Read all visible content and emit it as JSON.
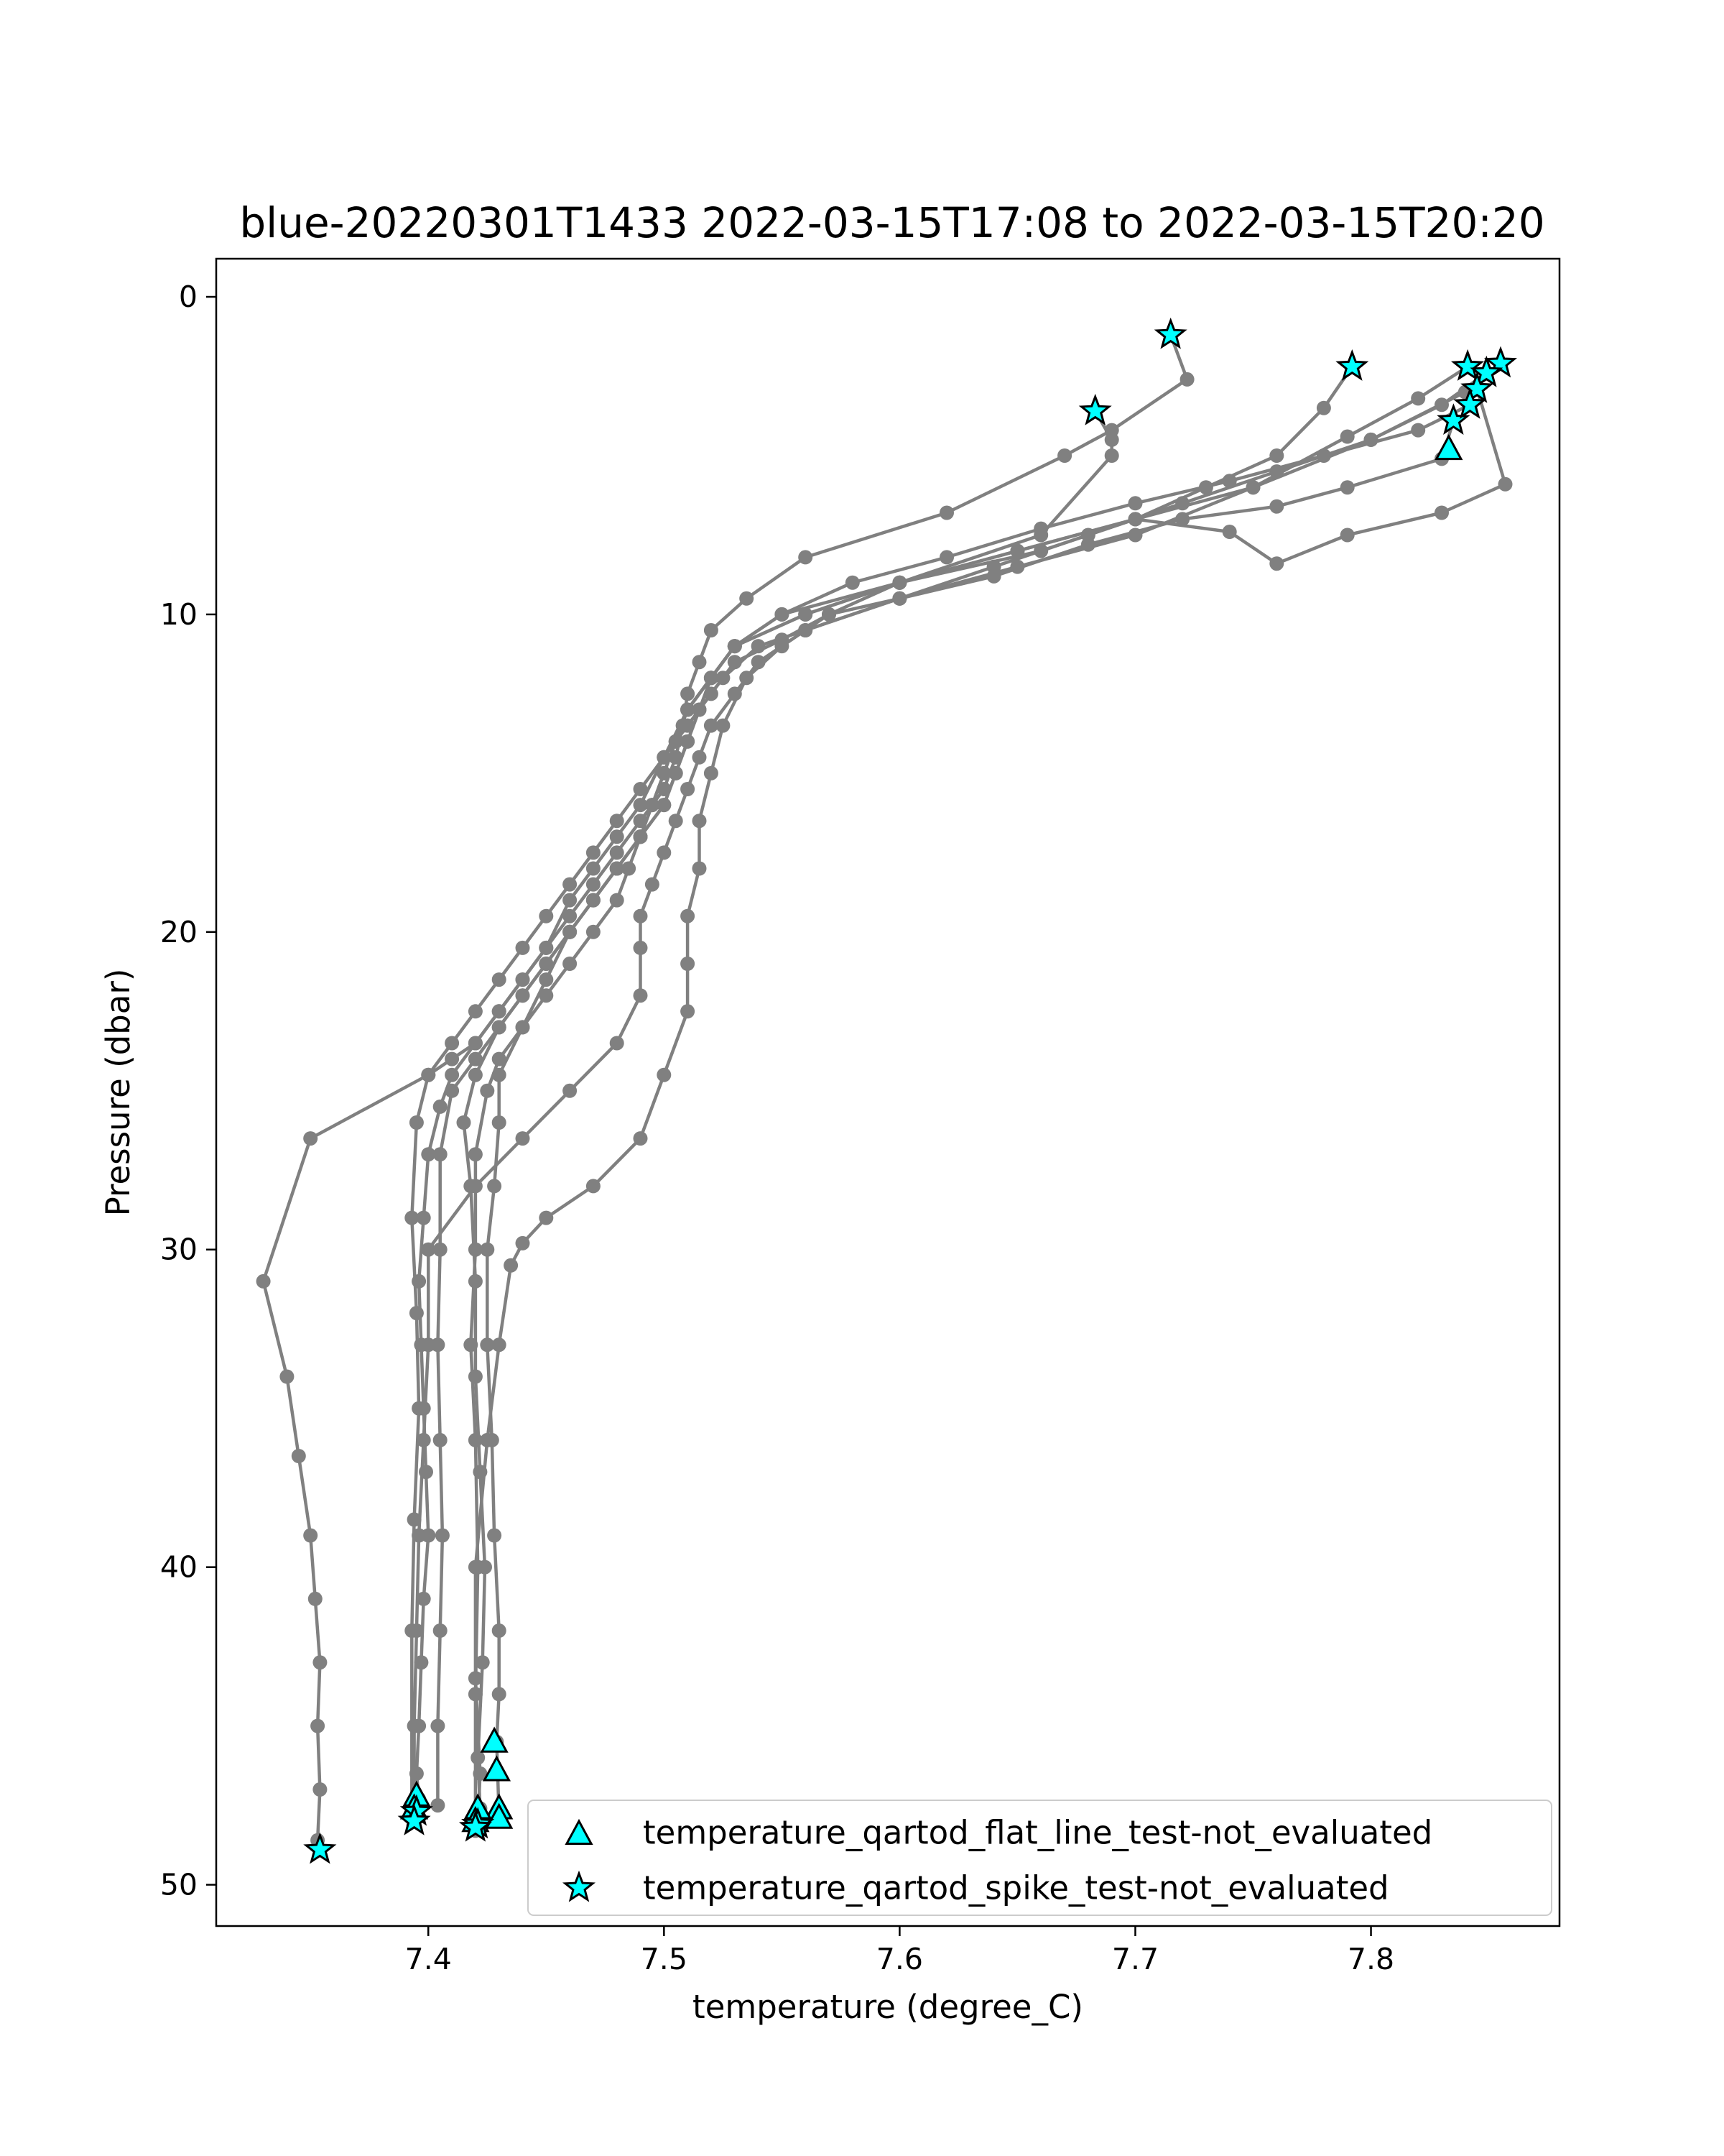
{
  "chart_data": {
    "type": "scatter",
    "title": "blue-20220301T1433 2022-03-15T17:08 to 2022-03-15T20:20",
    "xlabel": "temperature (degree_C)",
    "ylabel": "Pressure (dbar)",
    "xlim": [
      7.31,
      7.88
    ],
    "ylim": [
      51.3,
      -1.2
    ],
    "y_inverted": true,
    "xticks": [
      7.4,
      7.5,
      7.6,
      7.7,
      7.8
    ],
    "xtick_labels": [
      "7.4",
      "7.5",
      "7.6",
      "7.7",
      "7.8"
    ],
    "yticks": [
      0,
      10,
      20,
      30,
      40,
      50
    ],
    "ytick_labels": [
      "0",
      "10",
      "20",
      "30",
      "40",
      "50"
    ],
    "grid": false,
    "legend_position": "lower-right",
    "colors": {
      "profile": "#808080",
      "flag_fill": "#00ffff",
      "flag_edge": "#000000"
    },
    "series": [
      {
        "kind": "profile",
        "x": [
          7.715,
          7.722,
          7.69,
          7.67,
          7.62,
          7.56,
          7.535,
          7.52,
          7.515,
          7.51,
          7.508,
          7.505,
          7.5,
          7.49,
          7.48,
          7.47,
          7.46,
          7.45,
          7.44,
          7.43,
          7.42,
          7.41,
          7.405,
          7.4,
          7.398,
          7.396,
          7.397,
          7.398,
          7.399,
          7.4,
          7.398,
          7.397,
          7.396,
          7.395,
          7.396,
          7.395
        ],
        "y": [
          1.2,
          2.6,
          4.2,
          5.0,
          6.8,
          8.2,
          9.5,
          10.5,
          11.5,
          12.5,
          13.5,
          14.5,
          15.5,
          16.5,
          17.5,
          18.5,
          19.5,
          20.5,
          21.5,
          22.5,
          23.5,
          24.5,
          25.5,
          27.0,
          29.0,
          31.0,
          33.0,
          35.0,
          37.0,
          39.0,
          41.0,
          43.0,
          45.0,
          46.5,
          47.3,
          47.8
        ]
      },
      {
        "kind": "profile",
        "x": [
          7.683,
          7.69,
          7.69,
          7.66,
          7.6,
          7.55,
          7.53,
          7.52,
          7.51,
          7.5,
          7.49,
          7.48,
          7.47,
          7.46,
          7.45,
          7.44,
          7.43,
          7.42,
          7.41,
          7.4,
          7.35,
          7.33,
          7.34,
          7.345,
          7.35,
          7.352,
          7.354,
          7.353,
          7.354,
          7.353
        ],
        "y": [
          3.6,
          4.5,
          5.0,
          7.5,
          9.0,
          10.0,
          11.0,
          12.0,
          13.0,
          14.5,
          16.0,
          17.0,
          18.0,
          19.0,
          20.5,
          21.5,
          22.5,
          23.5,
          24.0,
          24.5,
          26.5,
          31.0,
          34.0,
          36.5,
          39.0,
          41.0,
          43.0,
          45.0,
          47.0,
          48.6
        ]
      },
      {
        "kind": "profile",
        "x": [
          7.792,
          7.78,
          7.76,
          7.73,
          7.7,
          7.66,
          7.6,
          7.56,
          7.53,
          7.52,
          7.51,
          7.505,
          7.5,
          7.495,
          7.49,
          7.48,
          7.47,
          7.46,
          7.45,
          7.44,
          7.43,
          7.42,
          7.41,
          7.405,
          7.405,
          7.404,
          7.405,
          7.406,
          7.405,
          7.404,
          7.404
        ],
        "y": [
          2.2,
          3.5,
          5.0,
          6.0,
          7.0,
          8.0,
          9.0,
          10.0,
          11.0,
          12.0,
          13.0,
          14.0,
          15.0,
          16.0,
          17.0,
          18.0,
          19.0,
          20.0,
          21.0,
          22.0,
          23.0,
          24.0,
          25.0,
          27.0,
          30.0,
          33.0,
          36.0,
          39.0,
          42.0,
          45.0,
          47.5
        ]
      },
      {
        "kind": "profile",
        "x": [
          7.841,
          7.82,
          7.79,
          7.75,
          7.7,
          7.65,
          7.6,
          7.56,
          7.53,
          7.52,
          7.515,
          7.51,
          7.505,
          7.5,
          7.49,
          7.48,
          7.47,
          7.46,
          7.45,
          7.44,
          7.43,
          7.42,
          7.415,
          7.418,
          7.42,
          7.42,
          7.422,
          7.424,
          7.423,
          7.421,
          7.422
        ],
        "y": [
          2.2,
          3.2,
          4.4,
          6.0,
          7.0,
          8.0,
          9.0,
          10.0,
          11.0,
          12.0,
          13.0,
          14.0,
          15.0,
          16.0,
          17.0,
          18.0,
          19.0,
          20.0,
          21.0,
          22.0,
          23.0,
          24.5,
          26.0,
          28.0,
          31.0,
          34.0,
          37.0,
          40.0,
          43.0,
          46.0,
          47.6
        ]
      },
      {
        "kind": "profile",
        "x": [
          7.855,
          7.84,
          7.8,
          7.75,
          7.7,
          7.65,
          7.6,
          7.56,
          7.54,
          7.525,
          7.515,
          7.51,
          7.505,
          7.5,
          7.49,
          7.48,
          7.47,
          7.46,
          7.45,
          7.44,
          7.43,
          7.43,
          7.428,
          7.425,
          7.425,
          7.427,
          7.428,
          7.43,
          7.43,
          7.429,
          7.43
        ],
        "y": [
          2.1,
          3.0,
          4.5,
          6.0,
          7.5,
          8.5,
          9.5,
          10.5,
          11.0,
          12.0,
          13.0,
          14.0,
          15.0,
          16.0,
          17.0,
          18.0,
          19.0,
          20.0,
          21.5,
          23.0,
          24.5,
          26.0,
          28.0,
          30.0,
          33.0,
          36.0,
          39.0,
          42.0,
          44.0,
          45.5,
          47.8
        ]
      },
      {
        "kind": "profile",
        "x": [
          7.849,
          7.83,
          7.8,
          7.76,
          7.72,
          7.68,
          7.64,
          7.6,
          7.56,
          7.54,
          7.53,
          7.52,
          7.515,
          7.51,
          7.505,
          7.5,
          7.495,
          7.49,
          7.49,
          7.49,
          7.48,
          7.46,
          7.44,
          7.42,
          7.4,
          7.4,
          7.398,
          7.396,
          7.395,
          7.394,
          7.394
        ],
        "y": [
          2.4,
          3.4,
          4.5,
          5.5,
          6.5,
          7.5,
          8.5,
          9.5,
          10.5,
          11.5,
          12.5,
          13.5,
          14.5,
          15.5,
          16.5,
          17.5,
          18.5,
          19.5,
          20.5,
          22.0,
          23.5,
          25.0,
          26.5,
          28.0,
          30.0,
          33.0,
          36.0,
          39.0,
          42.0,
          45.0,
          47.9
        ]
      },
      {
        "kind": "profile",
        "x": [
          7.845,
          7.857,
          7.83,
          7.79,
          7.76,
          7.74,
          7.7,
          7.65,
          7.6,
          7.57,
          7.55,
          7.535,
          7.525,
          7.52,
          7.515,
          7.515,
          7.51,
          7.51,
          7.51,
          7.5,
          7.49,
          7.47,
          7.45,
          7.44,
          7.435,
          7.43,
          7.425,
          7.42,
          7.42,
          7.422,
          7.421
        ],
        "y": [
          2.9,
          5.9,
          6.8,
          7.5,
          8.4,
          7.4,
          7.0,
          8.0,
          9.0,
          10.0,
          11.0,
          12.0,
          13.5,
          15.0,
          16.5,
          18.0,
          19.5,
          21.0,
          22.5,
          24.5,
          26.5,
          28.0,
          29.0,
          29.8,
          30.5,
          33.0,
          36.0,
          40.0,
          43.5,
          46.5,
          48.1
        ]
      },
      {
        "kind": "profile",
        "x": [
          7.835,
          7.83,
          7.79,
          7.76,
          7.72,
          7.68,
          7.64,
          7.6,
          7.57,
          7.55,
          7.53,
          7.52,
          7.51,
          7.5,
          7.49,
          7.48,
          7.47,
          7.46,
          7.45,
          7.44,
          7.43,
          7.42,
          7.41,
          7.4,
          7.395,
          7.393,
          7.395,
          7.396,
          7.394,
          7.393,
          7.393
        ],
        "y": [
          3.9,
          5.1,
          6.0,
          6.6,
          7.0,
          7.8,
          8.8,
          9.5,
          10.0,
          10.8,
          11.5,
          12.5,
          13.5,
          14.5,
          15.5,
          16.5,
          17.5,
          18.5,
          19.5,
          20.5,
          21.5,
          22.5,
          23.5,
          24.5,
          26.0,
          29.0,
          32.0,
          35.0,
          38.5,
          42.0,
          47.8
        ]
      },
      {
        "kind": "profile",
        "x": [
          7.842,
          7.82,
          7.78,
          7.74,
          7.7,
          7.66,
          7.62,
          7.58,
          7.55,
          7.53,
          7.52,
          7.51,
          7.505,
          7.5,
          7.495,
          7.49,
          7.485,
          7.48,
          7.47,
          7.46,
          7.45,
          7.44,
          7.43,
          7.425,
          7.42,
          7.42,
          7.418,
          7.42,
          7.421,
          7.42,
          7.42
        ],
        "y": [
          3.4,
          4.2,
          5.0,
          5.8,
          6.5,
          7.3,
          8.2,
          9.0,
          10.0,
          11.0,
          12.0,
          13.0,
          14.0,
          15.0,
          16.0,
          17.0,
          18.0,
          19.0,
          20.0,
          21.0,
          22.0,
          23.0,
          24.0,
          25.0,
          27.0,
          30.0,
          33.0,
          36.0,
          40.0,
          44.0,
          48.3
        ]
      },
      {
        "name": "temperature_qartod_flat_line_test-not_evaluated",
        "kind": "flag",
        "marker": "triangle",
        "x": [
          7.833,
          7.395,
          7.394,
          7.428,
          7.429,
          7.43,
          7.43,
          7.421,
          7.42
        ],
        "y": [
          4.8,
          47.2,
          47.6,
          45.5,
          46.4,
          47.6,
          47.9,
          47.6,
          48.0
        ]
      },
      {
        "name": "temperature_qartod_spike_test-not_evaluated",
        "kind": "flag",
        "marker": "star",
        "x": [
          7.715,
          7.683,
          7.792,
          7.841,
          7.855,
          7.849,
          7.845,
          7.835,
          7.842,
          7.354,
          7.395,
          7.394,
          7.421,
          7.42
        ],
        "y": [
          1.2,
          3.6,
          2.2,
          2.2,
          2.1,
          2.4,
          2.9,
          3.9,
          3.4,
          48.9,
          47.7,
          48.0,
          48.1,
          48.2
        ]
      }
    ]
  }
}
